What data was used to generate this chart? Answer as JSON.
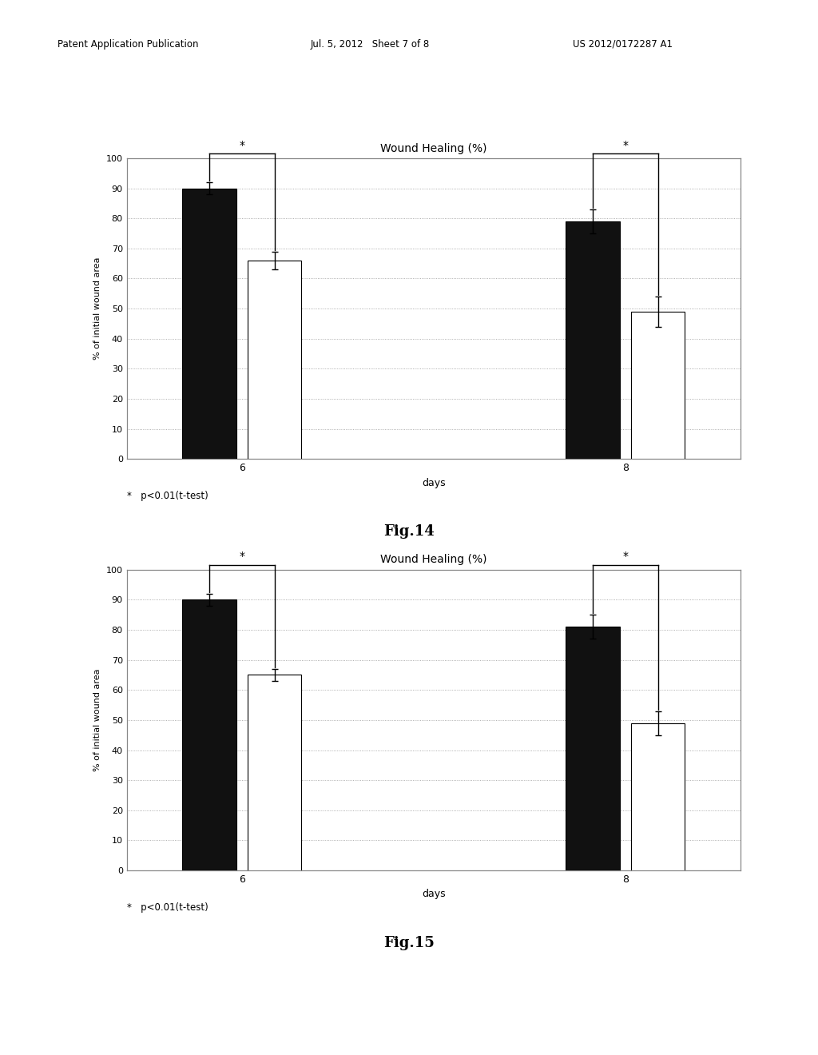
{
  "fig14": {
    "title": "Wound Healing (%)",
    "xlabel": "days",
    "ylabel": "% of initial wound area",
    "days": [
      "6",
      "8"
    ],
    "black_values": [
      90,
      79
    ],
    "white_values": [
      66,
      49
    ],
    "black_errors": [
      2,
      4
    ],
    "white_errors": [
      3,
      5
    ],
    "annotation": "*   p<0.01(t-test)",
    "figname": "Fig.14"
  },
  "fig15": {
    "title": "Wound Healing (%)",
    "xlabel": "days",
    "ylabel": "% of initial wound area",
    "days": [
      "6",
      "8"
    ],
    "black_values": [
      90,
      81
    ],
    "white_values": [
      65,
      49
    ],
    "black_errors": [
      2,
      4
    ],
    "white_errors": [
      2,
      4
    ],
    "annotation": "*   p<0.01(t-test)",
    "figname": "Fig.15"
  },
  "background_color": "#ffffff",
  "bar_black": "#111111",
  "bar_white": "#ffffff",
  "grid_color": "#999999",
  "yticks": [
    0,
    10,
    20,
    30,
    40,
    50,
    60,
    70,
    80,
    90,
    100
  ],
  "bar_width": 0.28,
  "header_left": "Patent Application Publication",
  "header_mid": "Jul. 5, 2012   Sheet 7 of 8",
  "header_right": "US 2012/0172287 A1"
}
